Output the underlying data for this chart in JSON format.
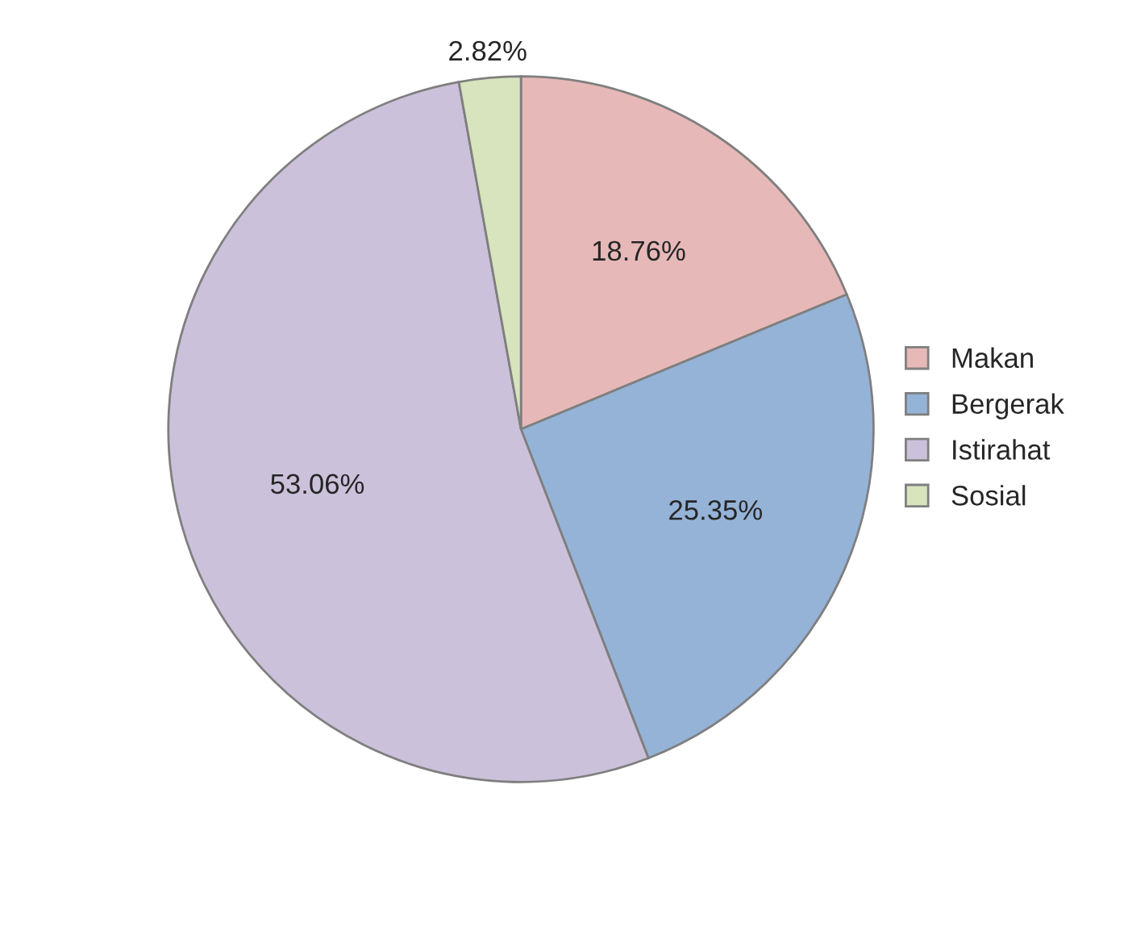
{
  "chart_data": {
    "type": "pie",
    "categories": [
      "Makan",
      "Bergerak",
      "Istirahat",
      "Sosial"
    ],
    "values": [
      18.76,
      25.35,
      53.06,
      2.82
    ],
    "value_labels": [
      "18.76%",
      "25.35%",
      "53.06%",
      "2.82%"
    ],
    "colors": [
      "#e6b9b8",
      "#95b3d7",
      "#ccc1da",
      "#d7e4bd"
    ],
    "legend": "right"
  }
}
